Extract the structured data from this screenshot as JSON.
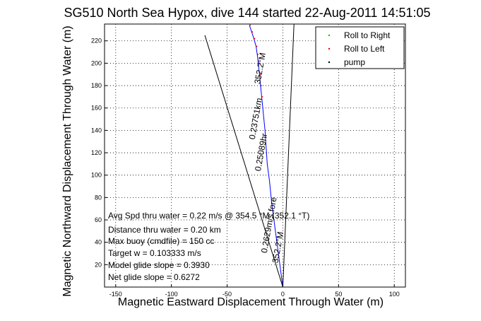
{
  "chart_data": {
    "type": "line",
    "title": "SG510 North Sea Hypox, dive 144 started 22-Aug-2011 14:51:05",
    "xlabel": "Magnetic Eastward Displacement Through Water (m)",
    "ylabel": "Magnetic Northward Displacement Through Water (m)",
    "xlim": [
      -160,
      110
    ],
    "ylim": [
      0,
      235
    ],
    "xticks": [
      -150,
      -100,
      -50,
      0,
      50,
      100
    ],
    "yticks": [
      20,
      40,
      60,
      80,
      100,
      120,
      140,
      160,
      180,
      200,
      220
    ],
    "grid": true,
    "legend_position": "top-right",
    "legend": [
      {
        "name": "Roll to Right",
        "color": "#00cc00",
        "marker": "."
      },
      {
        "name": "Roll to Left",
        "color": "#ff0000",
        "marker": "."
      },
      {
        "name": "pump",
        "color": "#000000",
        "marker": "."
      }
    ],
    "series": [
      {
        "key": "track",
        "color": "#0000ff",
        "x": [
          0,
          -2,
          -4,
          -6,
          -8,
          -10,
          -12,
          -14,
          -15,
          -16,
          -17,
          -18,
          -19,
          -20,
          -21,
          -22,
          -23,
          -24,
          -26,
          -28,
          -30
        ],
        "y": [
          0,
          15,
          30,
          45,
          60,
          75,
          95,
          110,
          125,
          140,
          150,
          160,
          170,
          180,
          190,
          200,
          208,
          215,
          222,
          228,
          234
        ]
      },
      {
        "key": "line-a",
        "color": "#000000",
        "x": [
          0,
          -70
        ],
        "y": [
          0,
          225
        ]
      },
      {
        "key": "line-b",
        "color": "#000000",
        "x": [
          0,
          10
        ],
        "y": [
          0,
          235
        ]
      }
    ],
    "track_labels": [
      {
        "text": "352.2°M",
        "x": -18,
        "y": 195,
        "angle": -80
      },
      {
        "text": "0.23751km",
        "x": -22,
        "y": 150,
        "angle": -80
      },
      {
        "text": "0.25089hr",
        "x": -17,
        "y": 120,
        "angle": -80
      },
      {
        "text": "0.2629m/s fore",
        "x": -10,
        "y": 55,
        "angle": -80
      },
      {
        "text": "352.2°M",
        "x": -2,
        "y": 35,
        "angle": -80
      }
    ]
  },
  "annotations": [
    "Avg Spd thru water =  0.22 m/s @ 354.5   °M (352.1 °T)",
    "Distance thru water =  0.20 km",
    "Max buoy (cmdfile) = 150 cc",
    "Target w = 0.103333 m/s",
    "Model glide slope = 0.3930",
    "Net glide slope = 0.6272"
  ]
}
